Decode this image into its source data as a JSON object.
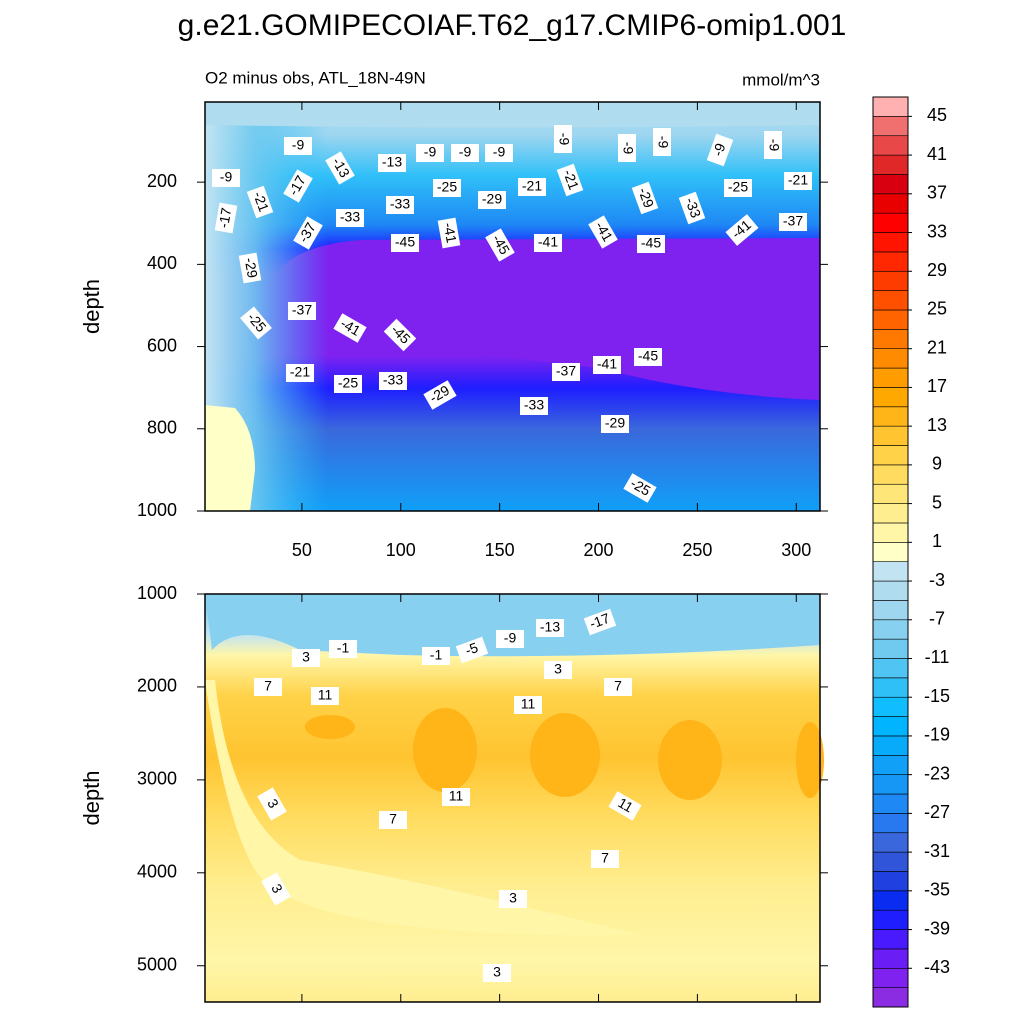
{
  "chart_data": {
    "type": "contour",
    "title": "g.e21.GOMIPECOIAF.T62_g17.CMIP6-omip1.001",
    "subtitle": "O2 minus obs, ATL_18N-49N",
    "units": "mmol/m^3",
    "colorbar": {
      "lim": [
        -47,
        47
      ],
      "ticks": [
        -43,
        -39,
        -35,
        -31,
        -27,
        -23,
        -19,
        -15,
        -11,
        -7,
        -3,
        1,
        5,
        9,
        13,
        17,
        21,
        25,
        29,
        33,
        37,
        41,
        45
      ],
      "colors": [
        "#8b2be2",
        "#7f22f0",
        "#6a1ef5",
        "#4a1aff",
        "#1e1eff",
        "#0a2bf0",
        "#2040e0",
        "#3055d8",
        "#3a68dc",
        "#2878f0",
        "#1e88f5",
        "#1696f5",
        "#10a0f8",
        "#08aafa",
        "#00b4ff",
        "#10beff",
        "#30c0f8",
        "#50c4f2",
        "#70caf0",
        "#88d0f0",
        "#9ed6f0",
        "#b0dcf0",
        "#c2e4f2",
        "#ffffc8",
        "#fff6a8",
        "#ffee90",
        "#ffe678",
        "#ffdc60",
        "#ffd248",
        "#ffc430",
        "#ffb418",
        "#ffa800",
        "#ff9c00",
        "#ff8c00",
        "#ff7800",
        "#ff6400",
        "#ff5000",
        "#ff3c00",
        "#ff2800",
        "#ff1400",
        "#ff0000",
        "#e80000",
        "#d80010",
        "#e02828",
        "#e84848",
        "#f07070",
        "#ffb0b0"
      ]
    },
    "panels": [
      {
        "ylabel": "depth",
        "xlim": [
          1,
          312
        ],
        "ylim": [
          5,
          1000
        ],
        "xticks": [
          50,
          100,
          150,
          200,
          250,
          300
        ],
        "yticks": [
          200,
          400,
          600,
          800,
          1000
        ],
        "xtick_labels": true,
        "contour_labels": [
          -9,
          -9,
          -17,
          -21,
          -17,
          -13,
          -13,
          -9,
          -9,
          -9,
          -9,
          -9,
          -9,
          -9,
          -9,
          -25,
          -29,
          -21,
          -21,
          -29,
          -25,
          -21,
          -33,
          -33,
          -33,
          -37,
          -41,
          -45,
          -45,
          -41,
          -41,
          -45,
          -41,
          -37,
          -29,
          -25,
          -37,
          -41,
          -45,
          -21,
          -25,
          -33,
          -29,
          -37,
          -41,
          -45,
          -33,
          -29,
          -25
        ]
      },
      {
        "ylabel": "depth",
        "xlim": [
          1,
          312
        ],
        "ylim": [
          1000,
          5390
        ],
        "xticks": [
          50,
          100,
          150,
          200,
          250,
          300
        ],
        "yticks": [
          1000,
          2000,
          3000,
          4000,
          5000
        ],
        "xtick_labels": false,
        "contour_labels": [
          -17,
          -13,
          -9,
          -5,
          -1,
          -1,
          3,
          3,
          7,
          7,
          11,
          11,
          11,
          11,
          3,
          7,
          7,
          3,
          3,
          3
        ]
      }
    ]
  }
}
